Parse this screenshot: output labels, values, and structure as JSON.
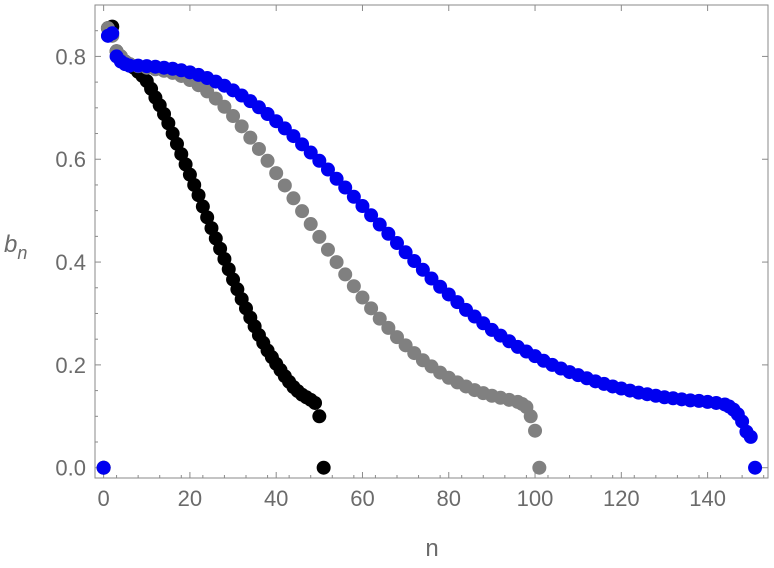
{
  "chart_data": {
    "type": "scatter",
    "title": "",
    "xlabel": "n",
    "ylabel_main": "b",
    "ylabel_sub": "n",
    "xlim": [
      -2,
      154
    ],
    "ylim": [
      -0.02,
      0.9
    ],
    "xticks": [
      0,
      20,
      40,
      60,
      80,
      100,
      120,
      140
    ],
    "yticks": [
      0.0,
      0.2,
      0.4,
      0.6,
      0.8
    ],
    "ytick_labels": [
      "0.0",
      "0.2",
      "0.4",
      "0.6",
      "0.8"
    ],
    "grid": false,
    "legend": "none",
    "series": [
      {
        "color": "#000000",
        "points": [
          [
            0,
            0.0
          ],
          [
            1,
            0.855
          ],
          [
            2,
            0.858
          ],
          [
            3,
            0.81
          ],
          [
            4,
            0.8
          ],
          [
            5,
            0.79
          ],
          [
            6,
            0.785
          ],
          [
            7,
            0.778
          ],
          [
            8,
            0.77
          ],
          [
            9,
            0.762
          ],
          [
            10,
            0.752
          ],
          [
            11,
            0.737
          ],
          [
            12,
            0.72
          ],
          [
            13,
            0.705
          ],
          [
            14,
            0.688
          ],
          [
            15,
            0.67
          ],
          [
            16,
            0.65
          ],
          [
            17,
            0.63
          ],
          [
            18,
            0.61
          ],
          [
            19,
            0.59
          ],
          [
            20,
            0.57
          ],
          [
            21,
            0.55
          ],
          [
            22,
            0.53
          ],
          [
            23,
            0.508
          ],
          [
            24,
            0.487
          ],
          [
            25,
            0.466
          ],
          [
            26,
            0.446
          ],
          [
            27,
            0.426
          ],
          [
            28,
            0.406
          ],
          [
            29,
            0.386
          ],
          [
            30,
            0.366
          ],
          [
            31,
            0.347
          ],
          [
            32,
            0.328
          ],
          [
            33,
            0.31
          ],
          [
            34,
            0.292
          ],
          [
            35,
            0.275
          ],
          [
            36,
            0.258
          ],
          [
            37,
            0.243
          ],
          [
            38,
            0.228
          ],
          [
            39,
            0.215
          ],
          [
            40,
            0.202
          ],
          [
            41,
            0.19
          ],
          [
            42,
            0.178
          ],
          [
            43,
            0.167
          ],
          [
            44,
            0.157
          ],
          [
            45,
            0.149
          ],
          [
            46,
            0.142
          ],
          [
            47,
            0.137
          ],
          [
            48,
            0.132
          ],
          [
            49,
            0.126
          ],
          [
            50,
            0.1
          ],
          [
            51,
            0.0
          ]
        ]
      },
      {
        "color": "#808080",
        "points": [
          [
            0,
            0.0
          ],
          [
            1,
            0.855
          ],
          [
            2,
            0.84
          ],
          [
            3,
            0.81
          ],
          [
            4,
            0.8
          ],
          [
            5,
            0.79
          ],
          [
            6,
            0.785
          ],
          [
            8,
            0.781
          ],
          [
            10,
            0.778
          ],
          [
            12,
            0.775
          ],
          [
            14,
            0.772
          ],
          [
            16,
            0.768
          ],
          [
            18,
            0.762
          ],
          [
            20,
            0.754
          ],
          [
            22,
            0.744
          ],
          [
            24,
            0.732
          ],
          [
            26,
            0.718
          ],
          [
            28,
            0.702
          ],
          [
            30,
            0.684
          ],
          [
            32,
            0.664
          ],
          [
            34,
            0.642
          ],
          [
            36,
            0.62
          ],
          [
            38,
            0.597
          ],
          [
            40,
            0.573
          ],
          [
            42,
            0.549
          ],
          [
            44,
            0.524
          ],
          [
            46,
            0.499
          ],
          [
            48,
            0.474
          ],
          [
            50,
            0.449
          ],
          [
            52,
            0.424
          ],
          [
            54,
            0.4
          ],
          [
            56,
            0.376
          ],
          [
            58,
            0.353
          ],
          [
            60,
            0.331
          ],
          [
            62,
            0.31
          ],
          [
            64,
            0.29
          ],
          [
            66,
            0.272
          ],
          [
            68,
            0.254
          ],
          [
            70,
            0.238
          ],
          [
            72,
            0.223
          ],
          [
            74,
            0.209
          ],
          [
            76,
            0.197
          ],
          [
            78,
            0.185
          ],
          [
            80,
            0.175
          ],
          [
            82,
            0.166
          ],
          [
            84,
            0.158
          ],
          [
            86,
            0.151
          ],
          [
            88,
            0.145
          ],
          [
            90,
            0.14
          ],
          [
            92,
            0.136
          ],
          [
            94,
            0.132
          ],
          [
            96,
            0.128
          ],
          [
            97,
            0.124
          ],
          [
            98,
            0.118
          ],
          [
            99,
            0.1
          ],
          [
            100,
            0.072
          ],
          [
            101,
            0.0
          ]
        ]
      },
      {
        "color": "#0000f0",
        "points": [
          [
            0,
            0.0
          ],
          [
            1,
            0.84
          ],
          [
            2,
            0.845
          ],
          [
            3,
            0.8
          ],
          [
            4,
            0.79
          ],
          [
            5,
            0.785
          ],
          [
            6,
            0.782
          ],
          [
            8,
            0.782
          ],
          [
            10,
            0.781
          ],
          [
            12,
            0.78
          ],
          [
            14,
            0.778
          ],
          [
            16,
            0.776
          ],
          [
            18,
            0.773
          ],
          [
            20,
            0.769
          ],
          [
            22,
            0.764
          ],
          [
            24,
            0.758
          ],
          [
            26,
            0.751
          ],
          [
            28,
            0.743
          ],
          [
            30,
            0.734
          ],
          [
            32,
            0.724
          ],
          [
            34,
            0.713
          ],
          [
            36,
            0.701
          ],
          [
            38,
            0.688
          ],
          [
            40,
            0.674
          ],
          [
            42,
            0.66
          ],
          [
            44,
            0.645
          ],
          [
            46,
            0.629
          ],
          [
            48,
            0.613
          ],
          [
            50,
            0.597
          ],
          [
            52,
            0.58
          ],
          [
            54,
            0.562
          ],
          [
            56,
            0.545
          ],
          [
            58,
            0.527
          ],
          [
            60,
            0.509
          ],
          [
            62,
            0.491
          ],
          [
            64,
            0.473
          ],
          [
            66,
            0.455
          ],
          [
            68,
            0.437
          ],
          [
            70,
            0.419
          ],
          [
            72,
            0.402
          ],
          [
            74,
            0.385
          ],
          [
            76,
            0.368
          ],
          [
            78,
            0.352
          ],
          [
            80,
            0.337
          ],
          [
            82,
            0.322
          ],
          [
            84,
            0.307
          ],
          [
            86,
            0.294
          ],
          [
            88,
            0.281
          ],
          [
            90,
            0.268
          ],
          [
            92,
            0.257
          ],
          [
            94,
            0.246
          ],
          [
            96,
            0.235
          ],
          [
            98,
            0.226
          ],
          [
            100,
            0.217
          ],
          [
            102,
            0.208
          ],
          [
            104,
            0.2
          ],
          [
            106,
            0.193
          ],
          [
            108,
            0.186
          ],
          [
            110,
            0.18
          ],
          [
            112,
            0.174
          ],
          [
            114,
            0.168
          ],
          [
            116,
            0.163
          ],
          [
            118,
            0.158
          ],
          [
            120,
            0.154
          ],
          [
            122,
            0.15
          ],
          [
            124,
            0.146
          ],
          [
            126,
            0.143
          ],
          [
            128,
            0.14
          ],
          [
            130,
            0.137
          ],
          [
            132,
            0.135
          ],
          [
            134,
            0.133
          ],
          [
            136,
            0.131
          ],
          [
            138,
            0.13
          ],
          [
            140,
            0.128
          ],
          [
            142,
            0.126
          ],
          [
            144,
            0.123
          ],
          [
            145,
            0.119
          ],
          [
            146,
            0.113
          ],
          [
            147,
            0.104
          ],
          [
            148,
            0.09
          ],
          [
            149,
            0.07
          ],
          [
            150,
            0.06
          ],
          [
            151,
            0.0
          ]
        ]
      }
    ]
  }
}
